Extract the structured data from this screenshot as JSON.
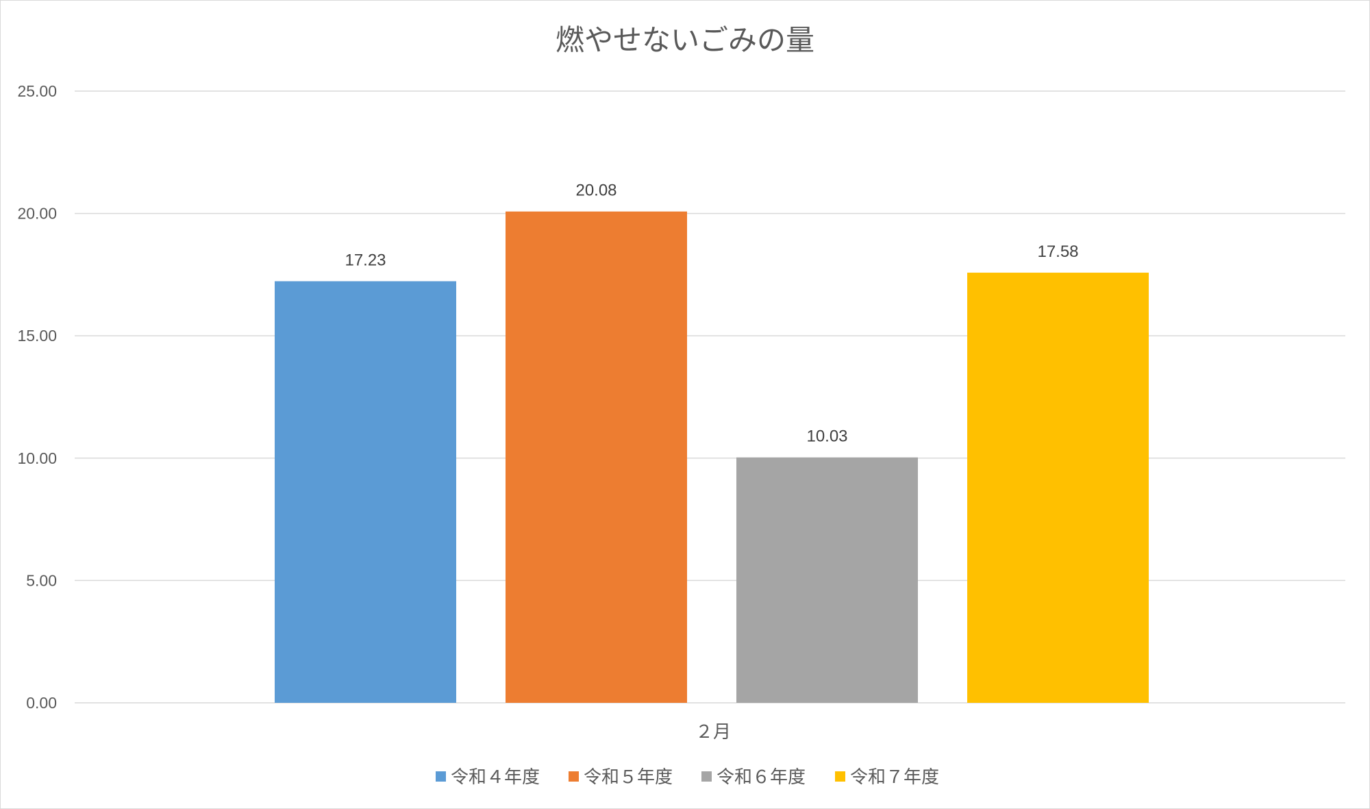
{
  "chart_data": {
    "type": "bar",
    "title": "燃やせないごみの量",
    "categories": [
      "２月"
    ],
    "series": [
      {
        "name": "令和４年度",
        "values": [
          17.23
        ],
        "color": "#5B9BD5",
        "label": "17.23"
      },
      {
        "name": "令和５年度",
        "values": [
          20.08
        ],
        "color": "#ED7D31",
        "label": "20.08"
      },
      {
        "name": "令和６年度",
        "values": [
          10.03
        ],
        "color": "#A5A5A5",
        "label": "10.03"
      },
      {
        "name": "令和７年度",
        "values": [
          17.58
        ],
        "color": "#FFC000",
        "label": "17.58"
      }
    ],
    "ylim": [
      0,
      25
    ],
    "yticks": [
      "0.00",
      "5.00",
      "10.00",
      "15.00",
      "20.00",
      "25.00"
    ],
    "ytick_values": [
      0,
      5,
      10,
      15,
      20,
      25
    ],
    "grid": true,
    "legend_position": "bottom"
  }
}
